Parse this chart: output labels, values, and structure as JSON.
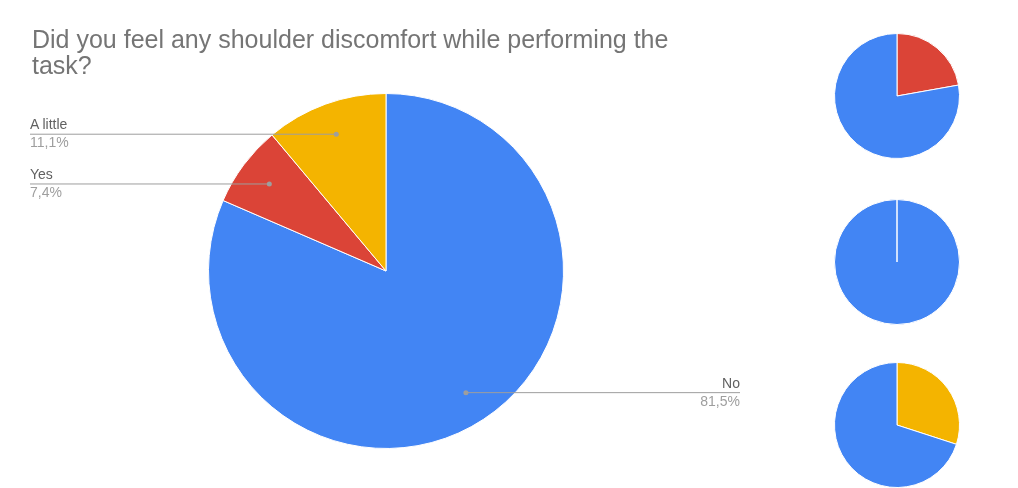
{
  "chart_data": [
    {
      "type": "pie",
      "title": "Did you feel any shoulder discomfort while performing the task?",
      "categories": [
        "No",
        "Yes",
        "A little"
      ],
      "values": [
        81.5,
        7.4,
        11.1
      ],
      "colors": [
        "#4285f4",
        "#db4437",
        "#f4b400"
      ],
      "value_labels": [
        "81,5%",
        "7,4%",
        "11,1%"
      ]
    },
    {
      "type": "pie",
      "categories": [
        null,
        null
      ],
      "values": [
        22.2,
        77.8
      ],
      "colors": [
        "#db4437",
        "#4285f4"
      ]
    },
    {
      "type": "pie",
      "categories": [
        null
      ],
      "values": [
        100
      ],
      "colors": [
        "#4285f4"
      ]
    },
    {
      "type": "pie",
      "categories": [
        null,
        null
      ],
      "values": [
        30,
        70
      ],
      "colors": [
        "#f4b400",
        "#4285f4"
      ]
    }
  ]
}
